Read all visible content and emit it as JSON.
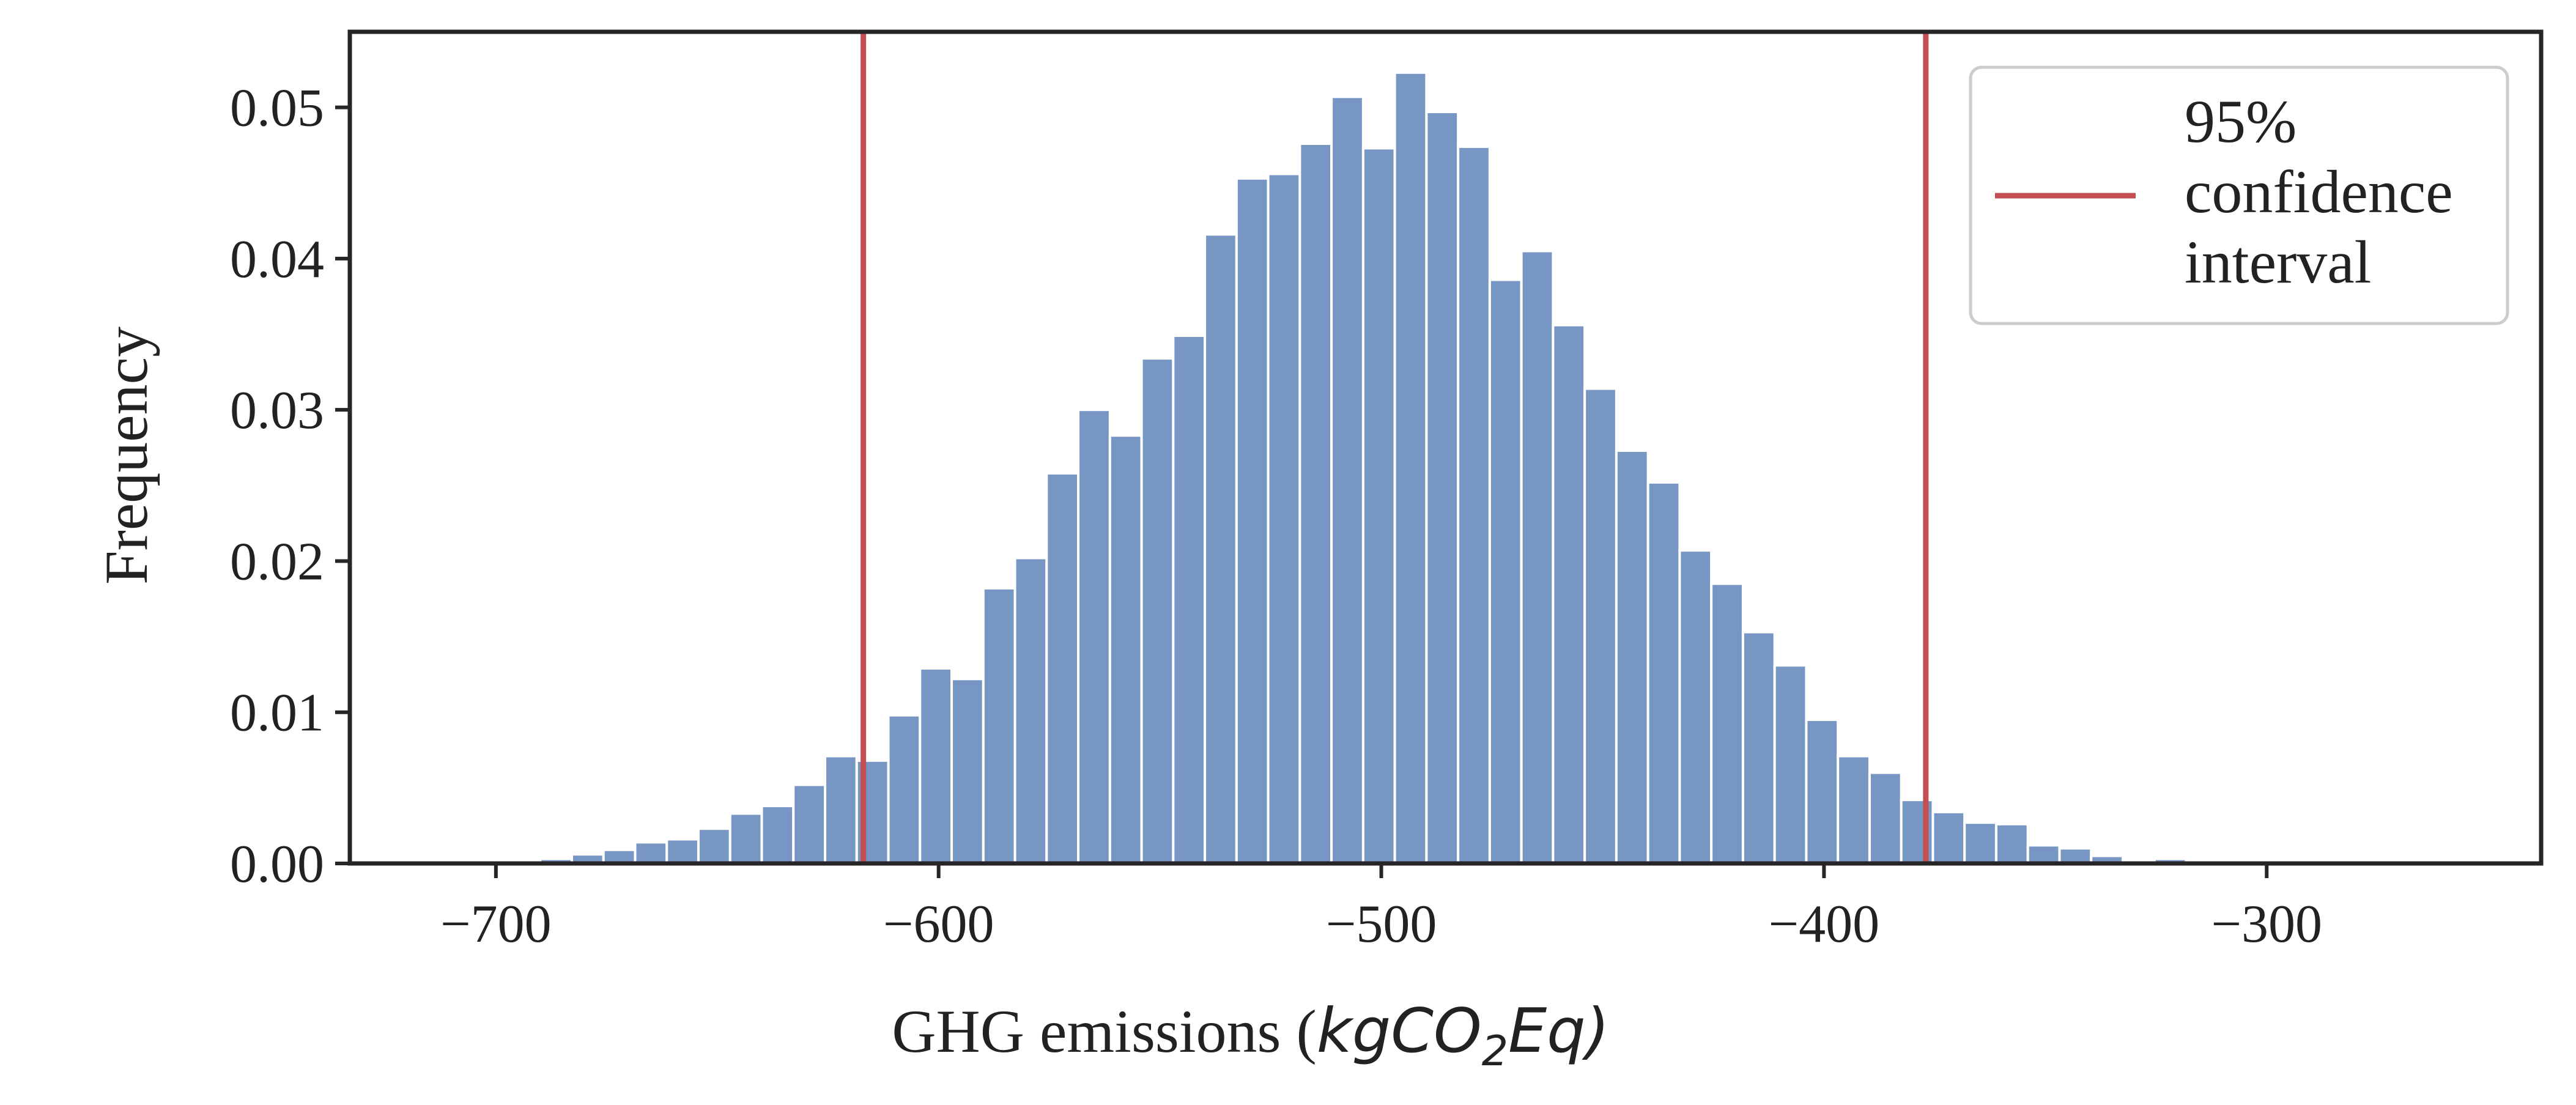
{
  "chart_data": {
    "type": "bar",
    "xlabel": "GHG emissions (",
    "xlabel_math": {
      "base": "kgCO",
      "subscript": "2",
      "rest": "Eq",
      "close": ")"
    },
    "ylabel": "Frequency",
    "xlim": [
      -733,
      -238
    ],
    "ylim": [
      0,
      0.055
    ],
    "x_ticks": [
      -700,
      -600,
      -500,
      -400,
      -300
    ],
    "x_tick_labels": [
      "−700",
      "−600",
      "−500",
      "−400",
      "−300"
    ],
    "y_ticks": [
      0.0,
      0.01,
      0.02,
      0.03,
      0.04,
      0.05
    ],
    "y_tick_labels": [
      "0.00",
      "0.01",
      "0.02",
      "0.03",
      "0.04",
      "0.05"
    ],
    "bin_start": -690,
    "bin_width": 7.15,
    "values": [
      0.0003,
      0.0006,
      0.0009,
      0.0014,
      0.0016,
      0.0023,
      0.0033,
      0.0038,
      0.0052,
      0.0071,
      0.0068,
      0.0098,
      0.0129,
      0.0122,
      0.0182,
      0.0202,
      0.0258,
      0.03,
      0.0283,
      0.0334,
      0.0349,
      0.0416,
      0.0453,
      0.0456,
      0.0476,
      0.0507,
      0.0473,
      0.0523,
      0.0497,
      0.0474,
      0.0386,
      0.0405,
      0.0356,
      0.0314,
      0.0273,
      0.0252,
      0.0207,
      0.0185,
      0.0153,
      0.0131,
      0.0095,
      0.0071,
      0.006,
      0.0042,
      0.0034,
      0.0027,
      0.0026,
      0.0012,
      0.001,
      0.0005,
      0.0002,
      0.0003,
      0.0001,
      0.0001
    ],
    "bar_color": "#7896c4",
    "confidence_interval": [
      -617,
      -377
    ],
    "ci_color": "#c44e52",
    "legend": {
      "lines": [
        "95%",
        "confidence",
        "interval"
      ],
      "placement": "top-right"
    },
    "grid": false
  }
}
